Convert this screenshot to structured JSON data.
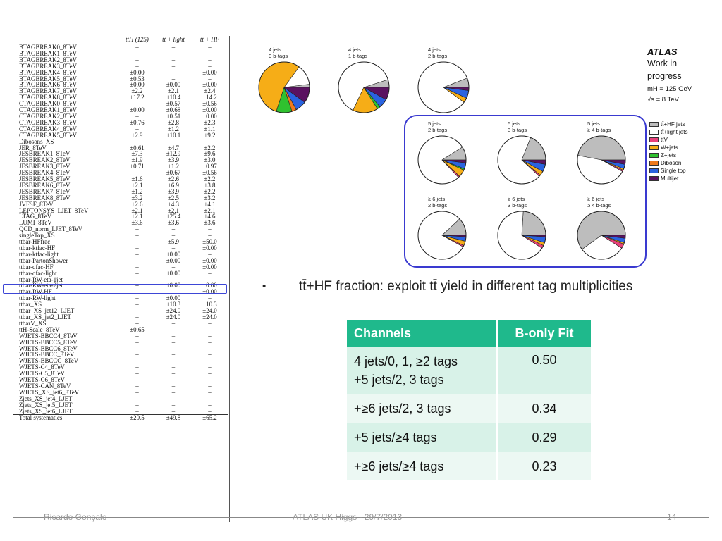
{
  "systematics_table": {
    "headers": [
      "",
      "ttH (125)",
      "tt + light",
      "tt + HF"
    ],
    "rows": [
      [
        "BTAGBREAK0_8TeV",
        "–",
        "–",
        "–"
      ],
      [
        "BTAGBREAK1_8TeV",
        "–",
        "–",
        "–"
      ],
      [
        "BTAGBREAK2_8TeV",
        "–",
        "–",
        "–"
      ],
      [
        "BTAGBREAK3_8TeV",
        "–",
        "–",
        "–"
      ],
      [
        "BTAGBREAK4_8TeV",
        "±0.00",
        "–",
        "±0.00"
      ],
      [
        "BTAGBREAK5_8TeV",
        "±0.53",
        "–",
        "–"
      ],
      [
        "BTAGBREAK6_8TeV",
        "±0.00",
        "±0.00",
        "±0.00"
      ],
      [
        "BTAGBREAK7_8TeV",
        "±2.2",
        "±2.1",
        "±2.4"
      ],
      [
        "BTAGBREAK8_8TeV",
        "±17.2",
        "±10.4",
        "±14.2"
      ],
      [
        "CTAGBREAK0_8TeV",
        "–",
        "±0.57",
        "±0.56"
      ],
      [
        "CTAGBREAK1_8TeV",
        "±0.00",
        "±0.68",
        "±0.00"
      ],
      [
        "CTAGBREAK2_8TeV",
        "–",
        "±0.51",
        "±0.00"
      ],
      [
        "CTAGBREAK3_8TeV",
        "±0.76",
        "±2.8",
        "±2.3"
      ],
      [
        "CTAGBREAK4_8TeV",
        "–",
        "±1.2",
        "±1.1"
      ],
      [
        "CTAGBREAK5_8TeV",
        "±2.9",
        "±10.1",
        "±9.2"
      ],
      [
        "Dibosons_XS",
        "–",
        "–",
        "–"
      ],
      [
        "JER_8TeV",
        "±0.61",
        "±4.7",
        "±2.2"
      ],
      [
        "JESBREAK1_8TeV",
        "±7.3",
        "±12.9",
        "±9.6"
      ],
      [
        "JESBREAK2_8TeV",
        "±1.9",
        "±3.9",
        "±3.0"
      ],
      [
        "JESBREAK3_8TeV",
        "±0.71",
        "±1.2",
        "±0.97"
      ],
      [
        "JESBREAK4_8TeV",
        "–",
        "±0.67",
        "±0.56"
      ],
      [
        "JESBREAK5_8TeV",
        "±1.6",
        "±2.6",
        "±2.2"
      ],
      [
        "JESBREAK6_8TeV",
        "±2.1",
        "±6.9",
        "±3.8"
      ],
      [
        "JESBREAK7_8TeV",
        "±1.2",
        "±3.9",
        "±2.2"
      ],
      [
        "JESBREAK8_8TeV",
        "±3.2",
        "±2.5",
        "±3.2"
      ],
      [
        "JVFSF_8TeV",
        "±2.6",
        "±4.3",
        "±4.1"
      ],
      [
        "LEPTONSYS_LJET_8TeV",
        "±2.1",
        "±2.1",
        "±2.1"
      ],
      [
        "LTAG_8TeV",
        "±2.1",
        "±25.4",
        "±4.6"
      ],
      [
        "LUMI_8TeV",
        "±3.6",
        "±3.6",
        "±3.6"
      ],
      [
        "QCD_norm_LJET_8TeV",
        "–",
        "–",
        "–"
      ],
      [
        "singleTop_XS",
        "–",
        "–",
        "–"
      ],
      [
        "ttbar-HFfrac",
        "–",
        "±5.9",
        "±50.0"
      ],
      [
        "ttbar-ktfac-HF",
        "–",
        "–",
        "±0.00"
      ],
      [
        "ttbar-ktfac-light",
        "–",
        "±0.00",
        "–"
      ],
      [
        "ttbar-PartonShower",
        "–",
        "±0.00",
        "±0.00"
      ],
      [
        "ttbar-qfac-HF",
        "–",
        "–",
        "±0.00"
      ],
      [
        "ttbar-qfac-light",
        "–",
        "±0.00",
        "–"
      ],
      [
        "ttbar-RW-eta-1jet",
        "–",
        "–",
        "–"
      ],
      [
        "ttbar-RW-eta-2jet",
        "–",
        "±0.00",
        "±0.00"
      ],
      [
        "ttbar-RW-HF",
        "–",
        "–",
        "±0.00"
      ],
      [
        "ttbar-RW-light",
        "–",
        "±0.00",
        "–"
      ],
      [
        "ttbar_XS",
        "–",
        "±10.3",
        "±10.3"
      ],
      [
        "ttbar_XS_jet12_LJET",
        "–",
        "±24.0",
        "±24.0"
      ],
      [
        "ttbar_XS_jet2_LJET",
        "–",
        "±24.0",
        "±24.0"
      ],
      [
        "ttbarV_XS",
        "–",
        "–",
        "–"
      ],
      [
        "ttH-Scale_8TeV",
        "±0.65",
        "–",
        "–"
      ],
      [
        "WJETS-BBCC4_8TeV",
        "–",
        "–",
        "–"
      ],
      [
        "WJETS-BBCC5_8TeV",
        "–",
        "–",
        "–"
      ],
      [
        "WJETS-BBCC6_8TeV",
        "–",
        "–",
        "–"
      ],
      [
        "WJETS-BBCC_8TeV",
        "–",
        "–",
        "–"
      ],
      [
        "WJETS-BBCCC_8TeV",
        "–",
        "–",
        "–"
      ],
      [
        "WJETS-C4_8TeV",
        "–",
        "–",
        "–"
      ],
      [
        "WJETS-C5_8TeV",
        "–",
        "–",
        "–"
      ],
      [
        "WJETS-C6_8TeV",
        "–",
        "–",
        "–"
      ],
      [
        "WJETS-CAN_8TeV",
        "–",
        "–",
        "–"
      ],
      [
        "WJETS_XS_jet6_8TeV",
        "–",
        "–",
        "–"
      ],
      [
        "Zjets_XS_jet4_LJET",
        "–",
        "–",
        "–"
      ],
      [
        "Zjets_XS_jet5_LJET",
        "–",
        "–",
        "–"
      ],
      [
        "Zjets_XS_jet6_LJET",
        "–",
        "–",
        "–"
      ]
    ],
    "total": [
      "Total systematics",
      "±20.5",
      "±49.8",
      "±65.2"
    ]
  },
  "atlas_block": {
    "title": "ATLAS",
    "line1": "Work in",
    "line2": "progress",
    "mass": "mH = 125 GeV",
    "energy": "√s = 8 TeV"
  },
  "legend": [
    {
      "label": "tt̄+HF jets",
      "color": "#bdbdbd"
    },
    {
      "label": "tt̄+light jets",
      "color": "#ffffff"
    },
    {
      "label": "tt̄V",
      "color": "#e8407a"
    },
    {
      "label": "W+jets",
      "color": "#f6ad17"
    },
    {
      "label": "Z+jets",
      "color": "#2fc12f"
    },
    {
      "label": "Diboson",
      "color": "#ee7a1c"
    },
    {
      "label": "Single top",
      "color": "#2a63e0"
    },
    {
      "label": "Multijet",
      "color": "#5a1260"
    }
  ],
  "chart_data": {
    "type": "pie",
    "sample_order": [
      "tt̄+HF jets",
      "tt̄+light jets",
      "tt̄V",
      "W+jets",
      "Z+jets",
      "Diboson",
      "Single top",
      "Multijet"
    ],
    "pies": [
      {
        "line1": "4 jets",
        "line2": "0 b-tags",
        "fractions": [
          0.02,
          0.13,
          0.0,
          0.55,
          0.1,
          0.03,
          0.07,
          0.1
        ]
      },
      {
        "line1": "4 jets",
        "line2": "1 b-tags",
        "fractions": [
          0.05,
          0.63,
          0.0,
          0.16,
          0.02,
          0.0,
          0.06,
          0.08
        ]
      },
      {
        "line1": "4 jets",
        "line2": "2 b-tags",
        "fractions": [
          0.06,
          0.84,
          0.0,
          0.03,
          0.0,
          0.0,
          0.05,
          0.02
        ]
      },
      {
        "line1": "5 jets",
        "line2": "2 b-tags",
        "fractions": [
          0.09,
          0.78,
          0.01,
          0.05,
          0.01,
          0.0,
          0.04,
          0.02
        ]
      },
      {
        "line1": "5 jets",
        "line2": "3 b-tags",
        "fractions": [
          0.19,
          0.69,
          0.01,
          0.03,
          0.0,
          0.0,
          0.05,
          0.03
        ]
      },
      {
        "line1": "5 jets",
        "line2": "≥ 4 b-tags",
        "fractions": [
          0.47,
          0.45,
          0.01,
          0.01,
          0.0,
          0.0,
          0.03,
          0.03
        ]
      },
      {
        "line1": "≥ 6 jets",
        "line2": "2 b-tags",
        "fractions": [
          0.12,
          0.8,
          0.01,
          0.03,
          0.0,
          0.0,
          0.03,
          0.01
        ]
      },
      {
        "line1": "≥ 6 jets",
        "line2": "3 b-tags",
        "fractions": [
          0.24,
          0.67,
          0.02,
          0.02,
          0.0,
          0.0,
          0.04,
          0.01
        ]
      },
      {
        "line1": "≥ 6 jets",
        "line2": "≥ 4 b-tags",
        "fractions": [
          0.6,
          0.31,
          0.03,
          0.01,
          0.0,
          0.0,
          0.03,
          0.02
        ]
      }
    ]
  },
  "bullet": {
    "symbol": "•",
    "text": "tt̄+HF fraction: exploit tt̄ yield in different tag multiplicities"
  },
  "results_table": {
    "headers": [
      "Channels",
      "B-only  Fit"
    ],
    "rows": [
      {
        "l1": "4 jets/0, 1, ≥2 tags",
        "l2": "+5 jets/2, 3 tags",
        "value": "0.50"
      },
      {
        "l1": "+≥6 jets/2, 3 tags",
        "l2": "",
        "value": "0.34"
      },
      {
        "l1": "+5 jets/≥4 tags",
        "l2": "",
        "value": "0.29"
      },
      {
        "l1": "+≥6 jets/≥4 tags",
        "l2": "",
        "value": "0.23"
      }
    ]
  },
  "footer": {
    "author": "Ricardo Gonçalo",
    "event": "ATLAS UK Higgs - 29/7/2013",
    "page": "14"
  }
}
